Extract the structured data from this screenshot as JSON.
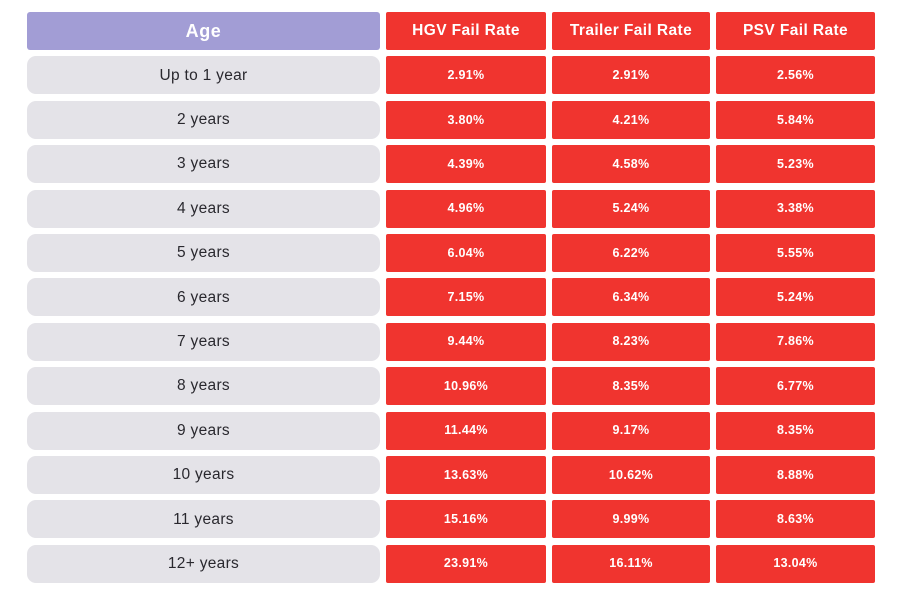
{
  "table": {
    "columns": [
      {
        "label": "Age"
      },
      {
        "label": "HGV Fail Rate"
      },
      {
        "label": "Trailer Fail Rate"
      },
      {
        "label": "PSV Fail Rate"
      }
    ],
    "rows": [
      {
        "age": "Up to 1 year",
        "hgv": "2.91%",
        "trailer": "2.91%",
        "psv": "2.56%"
      },
      {
        "age": "2 years",
        "hgv": "3.80%",
        "trailer": "4.21%",
        "psv": "5.84%"
      },
      {
        "age": "3 years",
        "hgv": "4.39%",
        "trailer": "4.58%",
        "psv": "5.23%"
      },
      {
        "age": "4 years",
        "hgv": "4.96%",
        "trailer": "5.24%",
        "psv": "3.38%"
      },
      {
        "age": "5 years",
        "hgv": "6.04%",
        "trailer": "6.22%",
        "psv": "5.55%"
      },
      {
        "age": "6 years",
        "hgv": "7.15%",
        "trailer": "6.34%",
        "psv": "5.24%"
      },
      {
        "age": "7 years",
        "hgv": "9.44%",
        "trailer": "8.23%",
        "psv": "7.86%"
      },
      {
        "age": "8 years",
        "hgv": "10.96%",
        "trailer": "8.35%",
        "psv": "6.77%"
      },
      {
        "age": "9 years",
        "hgv": "11.44%",
        "trailer": "9.17%",
        "psv": "8.35%"
      },
      {
        "age": "10 years",
        "hgv": "13.63%",
        "trailer": "10.62%",
        "psv": "8.88%"
      },
      {
        "age": "11 years",
        "hgv": "15.16%",
        "trailer": "9.99%",
        "psv": "8.63%"
      },
      {
        "age": "12+ years",
        "hgv": "23.91%",
        "trailer": "16.11%",
        "psv": "13.04%"
      }
    ]
  },
  "colors": {
    "header_age_bg": "#a29dd5",
    "fail_bg": "#f0342f",
    "age_cell_bg": "#e4e3e8",
    "age_text": "#29282e",
    "light_text": "#ffffff",
    "page_bg": "#ffffff"
  },
  "chart_data": {
    "type": "table",
    "title": "",
    "columns": [
      "Age",
      "HGV Fail Rate",
      "Trailer Fail Rate",
      "PSV Fail Rate"
    ],
    "units": "%",
    "rows": [
      [
        "Up to 1 year",
        2.91,
        2.91,
        2.56
      ],
      [
        "2 years",
        3.8,
        4.21,
        5.84
      ],
      [
        "3 years",
        4.39,
        4.58,
        5.23
      ],
      [
        "4 years",
        4.96,
        5.24,
        3.38
      ],
      [
        "5 years",
        6.04,
        6.22,
        5.55
      ],
      [
        "6 years",
        7.15,
        6.34,
        5.24
      ],
      [
        "7 years",
        9.44,
        8.23,
        7.86
      ],
      [
        "8 years",
        10.96,
        8.35,
        6.77
      ],
      [
        "9 years",
        11.44,
        9.17,
        8.35
      ],
      [
        "10 years",
        13.63,
        10.62,
        8.88
      ],
      [
        "11 years",
        15.16,
        9.99,
        8.63
      ],
      [
        "12+ years",
        23.91,
        16.11,
        13.04
      ]
    ]
  }
}
